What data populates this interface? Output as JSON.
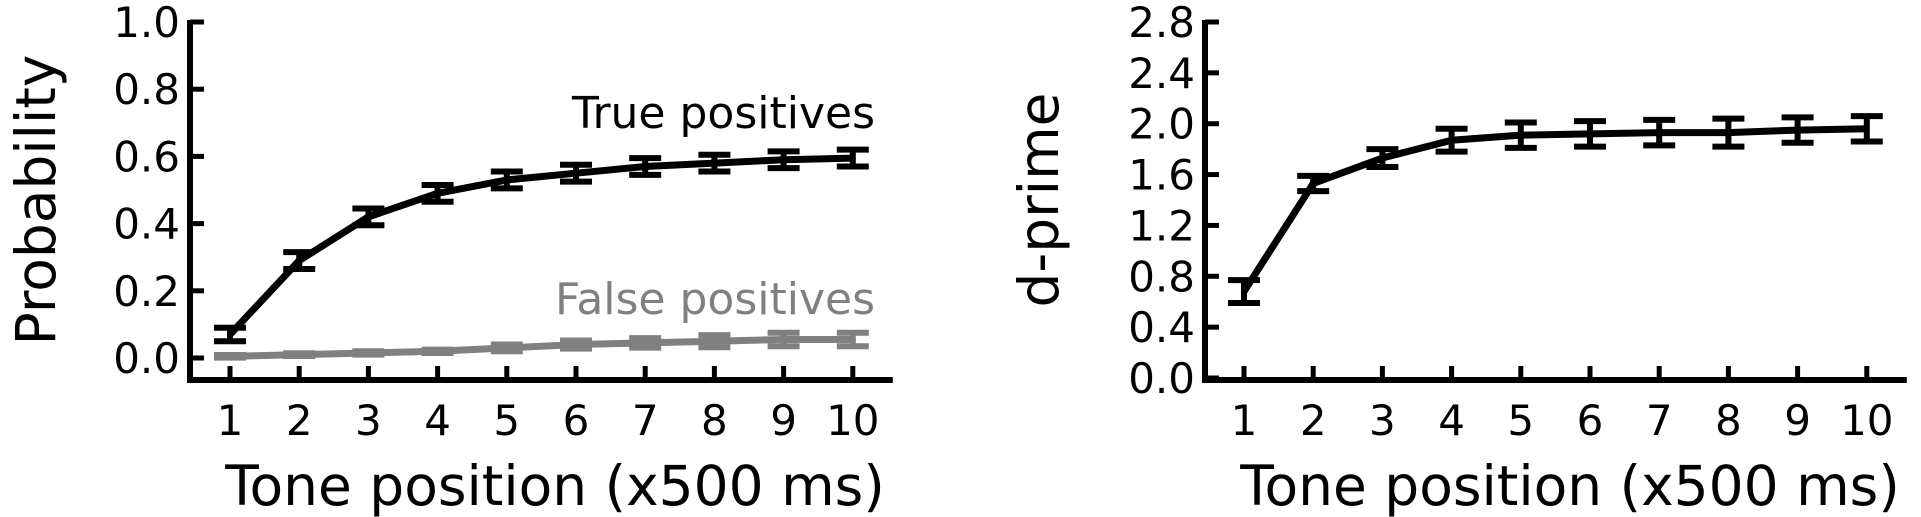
{
  "chart_data": [
    {
      "type": "line",
      "xlabel": "Tone position (x500 ms)",
      "ylabel": "Probability",
      "x": [
        1,
        2,
        3,
        4,
        5,
        6,
        7,
        8,
        9,
        10
      ],
      "xticks": [
        "1",
        "2",
        "3",
        "4",
        "5",
        "6",
        "7",
        "8",
        "9",
        "10"
      ],
      "ylim": [
        -0.05,
        1.0
      ],
      "yticks": [
        "0.0",
        "0.2",
        "0.4",
        "0.6",
        "0.8",
        "1.0"
      ],
      "ytick_values": [
        0.0,
        0.2,
        0.4,
        0.6,
        0.8,
        1.0
      ],
      "grid": false,
      "legend": "inline text labels",
      "series": [
        {
          "name": "True positives",
          "color": "#000000",
          "values": [
            0.07,
            0.29,
            0.42,
            0.49,
            0.53,
            0.55,
            0.57,
            0.58,
            0.59,
            0.595
          ],
          "errors": [
            0.02,
            0.025,
            0.025,
            0.025,
            0.025,
            0.025,
            0.025,
            0.025,
            0.025,
            0.025
          ]
        },
        {
          "name": "False positives",
          "color": "#808080",
          "values": [
            0.005,
            0.01,
            0.015,
            0.02,
            0.03,
            0.04,
            0.045,
            0.05,
            0.055,
            0.055
          ],
          "errors": [
            0.004,
            0.004,
            0.005,
            0.005,
            0.01,
            0.012,
            0.014,
            0.018,
            0.02,
            0.02
          ]
        }
      ]
    },
    {
      "type": "line",
      "xlabel": "Tone position (x500 ms)",
      "ylabel": "d-prime",
      "x": [
        1,
        2,
        3,
        4,
        5,
        6,
        7,
        8,
        9,
        10
      ],
      "xticks": [
        "1",
        "2",
        "3",
        "4",
        "5",
        "6",
        "7",
        "8",
        "9",
        "10"
      ],
      "ylim": [
        0.0,
        2.8
      ],
      "yticks": [
        "0.0",
        "0.4",
        "0.8",
        "1.2",
        "1.6",
        "2.0",
        "2.4",
        "2.8"
      ],
      "ytick_values": [
        0.0,
        0.4,
        0.8,
        1.2,
        1.6,
        2.0,
        2.4,
        2.8
      ],
      "grid": false,
      "series": [
        {
          "color": "#000000",
          "values": [
            0.68,
            1.53,
            1.73,
            1.87,
            1.91,
            1.92,
            1.93,
            1.93,
            1.95,
            1.96
          ],
          "errors": [
            0.09,
            0.06,
            0.07,
            0.09,
            0.1,
            0.1,
            0.1,
            0.11,
            0.1,
            0.1
          ]
        }
      ]
    }
  ]
}
